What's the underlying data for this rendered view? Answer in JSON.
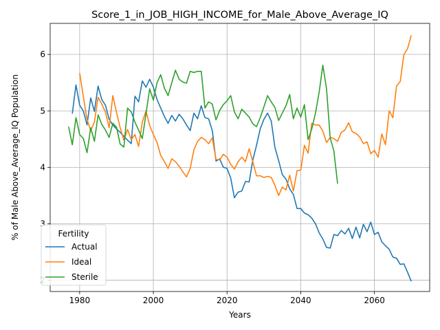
{
  "chart_data": {
    "type": "line",
    "title": "Score_1_in_JOB_HIGH_INCOME_for_Male_Above_Average_IQ",
    "xlabel": "Years",
    "ylabel": "% of Male Above_Average_IQ Population",
    "xlim": [
      1972,
      2075
    ],
    "ylim": [
      1.8,
      6.55
    ],
    "xticks": [
      1980,
      2000,
      2020,
      2040,
      2060
    ],
    "yticks": [
      2,
      3,
      4,
      5,
      6
    ],
    "grid": true,
    "legend": {
      "title": "Fertility",
      "placement": "lower-left"
    },
    "series": [
      {
        "name": "Actual",
        "color": "#1f77b4",
        "x": [
          1978,
          1979,
          1980,
          1981,
          1982,
          1983,
          1984,
          1985,
          1986,
          1987,
          1988,
          1989,
          1990,
          1991,
          1992,
          1993,
          1994,
          1995,
          1996,
          1997,
          1998,
          1999,
          2000,
          2001,
          2002,
          2003,
          2004,
          2005,
          2006,
          2007,
          2008,
          2009,
          2010,
          2011,
          2012,
          2013,
          2014,
          2015,
          2016,
          2017,
          2018,
          2019,
          2020,
          2021,
          2022,
          2023,
          2024,
          2025,
          2026,
          2027,
          2028,
          2029,
          2030,
          2031,
          2032,
          2033,
          2034,
          2035,
          2036,
          2037,
          2038,
          2039,
          2040,
          2041,
          2042,
          2043,
          2044,
          2045,
          2046,
          2047,
          2048,
          2049,
          2050,
          2051,
          2052,
          2053,
          2054,
          2055,
          2056,
          2057,
          2058,
          2059,
          2060,
          2061,
          2062,
          2063,
          2064,
          2065,
          2066,
          2067,
          2068,
          2069,
          2070
        ],
        "y": [
          4.95,
          5.46,
          5.1,
          5.0,
          4.75,
          5.23,
          4.99,
          5.44,
          5.2,
          5.1,
          4.85,
          4.75,
          4.68,
          4.62,
          4.55,
          4.48,
          4.42,
          5.26,
          5.16,
          5.53,
          5.42,
          5.56,
          5.42,
          5.2,
          5.05,
          4.9,
          4.78,
          4.92,
          4.82,
          4.94,
          4.86,
          4.75,
          4.65,
          4.96,
          4.86,
          5.09,
          4.88,
          4.86,
          4.65,
          4.11,
          4.15,
          4.0,
          3.98,
          3.81,
          3.46,
          3.56,
          3.58,
          3.75,
          3.74,
          4.13,
          4.39,
          4.68,
          4.85,
          4.96,
          4.82,
          4.35,
          4.12,
          3.87,
          3.79,
          3.62,
          3.52,
          3.27,
          3.27,
          3.19,
          3.16,
          3.1,
          3.0,
          2.84,
          2.73,
          2.58,
          2.57,
          2.81,
          2.79,
          2.88,
          2.82,
          2.92,
          2.74,
          2.94,
          2.75,
          2.99,
          2.86,
          3.03,
          2.81,
          2.85,
          2.68,
          2.61,
          2.55,
          2.41,
          2.39,
          2.28,
          2.29,
          2.14,
          1.98
        ]
      },
      {
        "name": "Ideal",
        "color": "#ff7f0e",
        "x": [
          1980,
          1981,
          1982,
          1983,
          1984,
          1985,
          1986,
          1987,
          1988,
          1989,
          1990,
          1991,
          1992,
          1993,
          1994,
          1995,
          1996,
          1997,
          1998,
          1999,
          2000,
          2001,
          2002,
          2003,
          2004,
          2005,
          2006,
          2007,
          2008,
          2009,
          2010,
          2011,
          2012,
          2013,
          2014,
          2015,
          2016,
          2017,
          2018,
          2019,
          2020,
          2021,
          2022,
          2023,
          2024,
          2025,
          2026,
          2027,
          2028,
          2029,
          2030,
          2031,
          2032,
          2033,
          2034,
          2035,
          2036,
          2037,
          2038,
          2039,
          2040,
          2041,
          2042,
          2043,
          2044,
          2045,
          2046,
          2047,
          2048,
          2049,
          2050,
          2051,
          2052,
          2053,
          2054,
          2055,
          2056,
          2057,
          2058,
          2059,
          2060,
          2061,
          2062,
          2063,
          2064,
          2065,
          2066,
          2067,
          2068,
          2069,
          2070
        ],
        "y": [
          5.67,
          5.25,
          4.85,
          4.65,
          4.8,
          5.24,
          5.12,
          4.98,
          4.7,
          5.27,
          4.97,
          4.7,
          4.48,
          4.67,
          4.49,
          4.58,
          4.37,
          4.8,
          5.0,
          4.74,
          4.58,
          4.44,
          4.21,
          4.1,
          3.98,
          4.15,
          4.1,
          4.02,
          3.92,
          3.83,
          3.98,
          4.31,
          4.46,
          4.53,
          4.49,
          4.42,
          4.52,
          4.14,
          4.13,
          4.23,
          4.18,
          4.05,
          3.97,
          4.1,
          4.18,
          4.1,
          4.33,
          4.1,
          3.85,
          3.85,
          3.82,
          3.84,
          3.82,
          3.68,
          3.5,
          3.65,
          3.6,
          3.86,
          3.58,
          3.94,
          3.95,
          4.39,
          4.25,
          4.78,
          4.75,
          4.75,
          4.64,
          4.44,
          4.53,
          4.51,
          4.46,
          4.62,
          4.66,
          4.79,
          4.63,
          4.6,
          4.54,
          4.42,
          4.45,
          4.24,
          4.3,
          4.18,
          4.59,
          4.4,
          5.0,
          4.88,
          5.44,
          5.52,
          6.0,
          6.1,
          6.34
        ]
      },
      {
        "name": "Sterile",
        "color": "#2ca02c",
        "x": [
          1977,
          1978,
          1979,
          1980,
          1981,
          1982,
          1983,
          1984,
          1985,
          1986,
          1987,
          1988,
          1989,
          1990,
          1991,
          1992,
          1993,
          1994,
          1995,
          1996,
          1997,
          1998,
          1999,
          2000,
          2001,
          2002,
          2003,
          2004,
          2005,
          2006,
          2007,
          2008,
          2009,
          2010,
          2011,
          2012,
          2013,
          2014,
          2015,
          2016,
          2017,
          2018,
          2019,
          2020,
          2021,
          2022,
          2023,
          2024,
          2025,
          2026,
          2027,
          2028,
          2029,
          2030,
          2031,
          2032,
          2033,
          2034,
          2035,
          2036,
          2037,
          2038,
          2039,
          2040,
          2041,
          2042,
          2043,
          2044,
          2045,
          2046,
          2047,
          2048,
          2049,
          2050
        ],
        "y": [
          4.72,
          4.4,
          4.88,
          4.58,
          4.51,
          4.26,
          4.7,
          4.46,
          4.93,
          4.76,
          4.66,
          4.53,
          4.78,
          4.71,
          4.41,
          4.36,
          5.05,
          4.98,
          4.8,
          4.66,
          4.51,
          4.95,
          5.39,
          5.19,
          5.5,
          5.64,
          5.4,
          5.27,
          5.5,
          5.72,
          5.56,
          5.51,
          5.49,
          5.7,
          5.68,
          5.7,
          5.7,
          5.05,
          5.16,
          5.12,
          4.84,
          5.01,
          5.11,
          5.18,
          5.27,
          4.98,
          4.86,
          5.03,
          4.96,
          4.89,
          4.77,
          4.72,
          4.88,
          5.07,
          5.27,
          5.16,
          5.06,
          4.83,
          4.96,
          5.09,
          5.29,
          4.86,
          5.05,
          4.89,
          5.11,
          4.49,
          4.68,
          4.96,
          5.33,
          5.81,
          5.39,
          4.52,
          4.29,
          3.71
        ]
      }
    ]
  }
}
